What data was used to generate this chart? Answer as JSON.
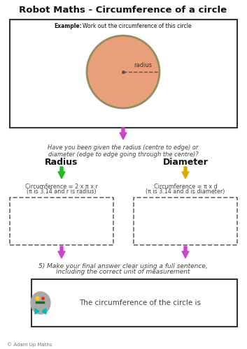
{
  "title": "Robot Maths - Circumference of a circle",
  "bg_color": "#ffffff",
  "example_label": "Example:",
  "example_text": "Work out the circumference of this circle",
  "circle_color": "#E8956D",
  "radius_label": "radius",
  "radius_heading": "Radius",
  "diameter_heading": "Diameter",
  "radius_formula": "Circumference = 2 x π x r",
  "radius_note": "(π is 3.14 and r is radius)",
  "diameter_formula": "Circumference = π x d",
  "diameter_note": "(π is 3.14 and d is diameter)",
  "final_text_line1": "5) Make your final answer clear using a full sentence,",
  "final_text_line2": "including the correct unit of measurement",
  "answer_text": "The circumference of the circle is",
  "copyright": "© Adam Up Maths",
  "green_arrow": "#22bb22",
  "yellow_arrow": "#ddaa00",
  "magenta_arrow": "#cc44cc",
  "text_color": "#444444",
  "box_color": "#222222",
  "dashed_color": "#666666"
}
